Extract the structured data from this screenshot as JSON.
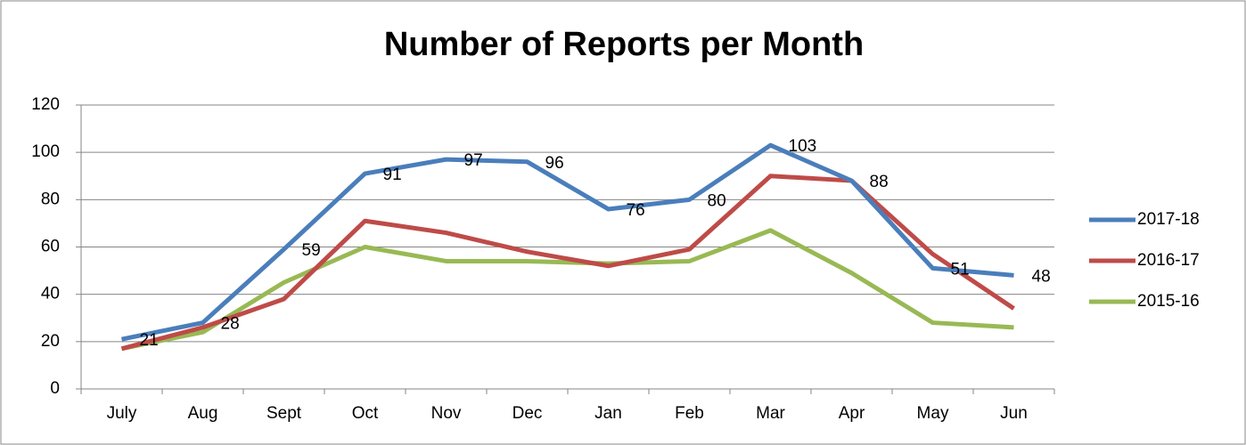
{
  "chart_data": {
    "type": "line",
    "title": "Number of Reports per Month",
    "categories": [
      "July",
      "Aug",
      "Sept",
      "Oct",
      "Nov",
      "Dec",
      "Jan",
      "Feb",
      "Mar",
      "Apr",
      "May",
      "Jun"
    ],
    "series": [
      {
        "name": "2017-18",
        "color": "#4a7ebb",
        "show_labels": true,
        "values": [
          21,
          28,
          59,
          91,
          97,
          96,
          76,
          80,
          103,
          88,
          51,
          48
        ]
      },
      {
        "name": "2016-17",
        "color": "#be4b48",
        "show_labels": false,
        "values": [
          17,
          26,
          38,
          71,
          66,
          58,
          52,
          59,
          90,
          88,
          57,
          34
        ]
      },
      {
        "name": "2015-16",
        "color": "#98b954",
        "show_labels": false,
        "values": [
          17,
          24,
          45,
          60,
          54,
          54,
          53,
          54,
          67,
          49,
          28,
          26
        ]
      }
    ],
    "ylim": [
      0,
      120
    ],
    "yticks": [
      0,
      20,
      40,
      60,
      80,
      100,
      120
    ],
    "grid": true,
    "legend": "right"
  }
}
